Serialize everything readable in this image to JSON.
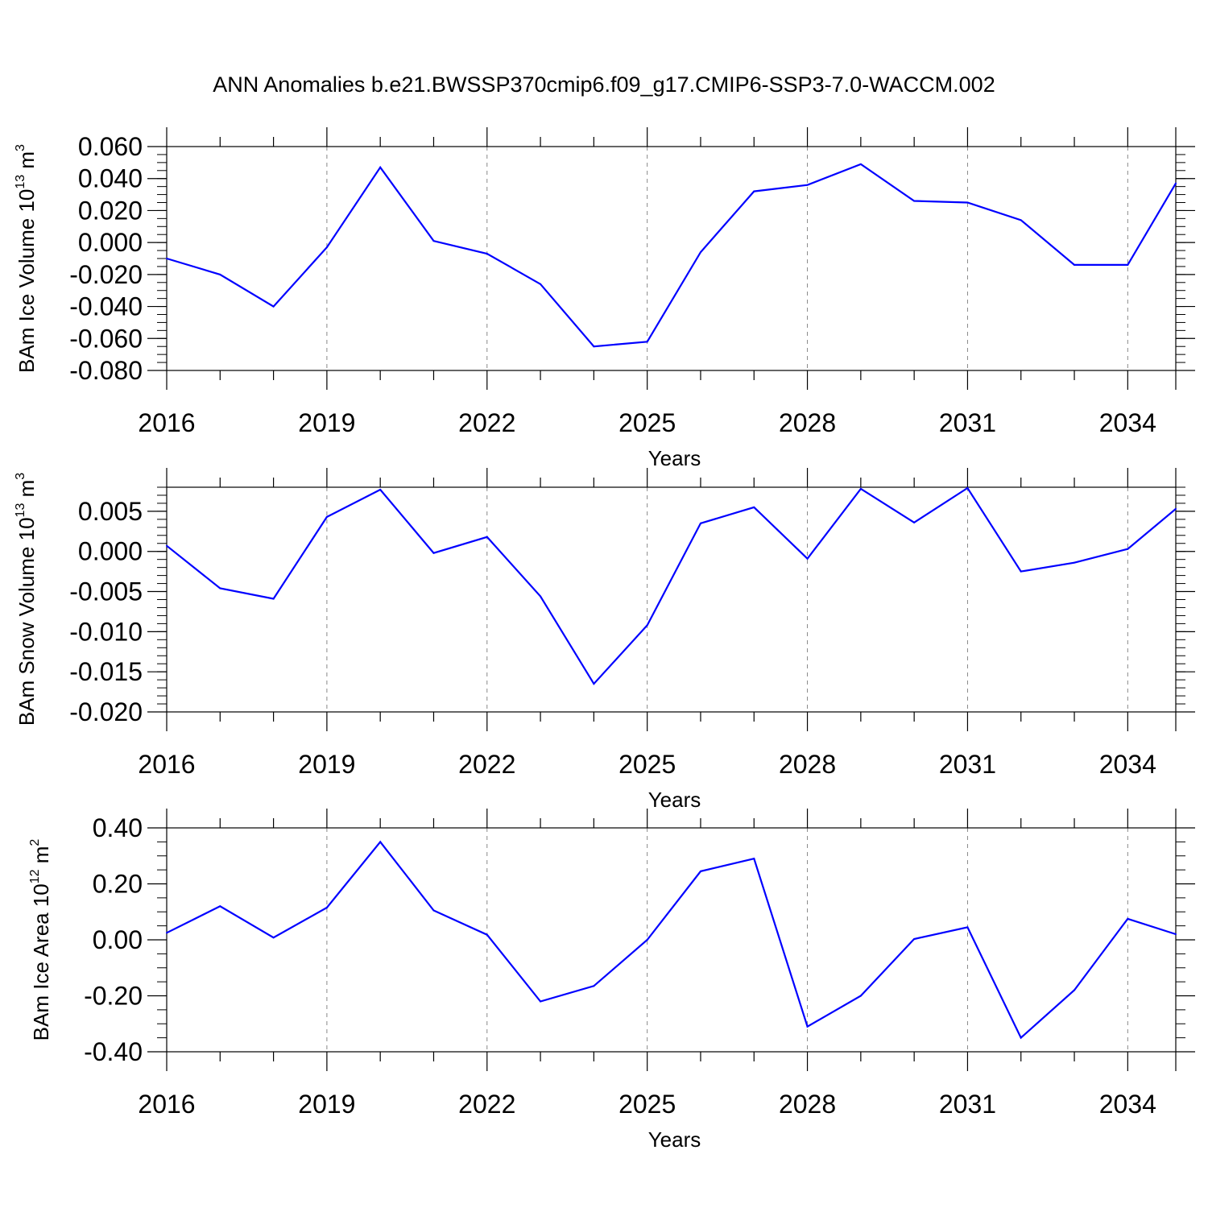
{
  "title": "ANN Anomalies b.e21.BWSSP370cmip6.f09_g17.CMIP6-SSP3-7.0-WACCM.002",
  "colors": {
    "series": "#0000ff",
    "axis": "#000000",
    "grid": "#888888"
  },
  "chart_data": [
    {
      "type": "line",
      "ylabel_prefix": "BAm Ice Volume 10",
      "ylabel_exp": "13",
      "ylabel_unit": " m",
      "ylabel_unit_exp": "3",
      "xlabel": "Years",
      "xlim": [
        2016,
        2034.9
      ],
      "ylim": [
        -0.08,
        0.06
      ],
      "yticks": [
        -0.08,
        -0.06,
        -0.04,
        -0.02,
        0.0,
        0.02,
        0.04,
        0.06
      ],
      "ytick_labels": [
        "-0.080",
        "-0.060",
        "-0.040",
        "-0.020",
        "0.000",
        "0.020",
        "0.040",
        "0.060"
      ],
      "yminor_step": 0.005,
      "xticks": [
        2016,
        2019,
        2022,
        2025,
        2028,
        2031,
        2034
      ],
      "xtick_labels": [
        "2016",
        "2019",
        "2022",
        "2025",
        "2028",
        "2031",
        "2034"
      ],
      "x": [
        2016,
        2017,
        2018,
        2019,
        2020,
        2021,
        2022,
        2023,
        2024,
        2025,
        2026,
        2027,
        2028,
        2029,
        2030,
        2031,
        2032,
        2033,
        2034,
        2034.9
      ],
      "values": [
        -0.01,
        -0.02,
        -0.04,
        -0.003,
        0.047,
        0.001,
        -0.007,
        -0.026,
        -0.065,
        -0.062,
        -0.006,
        0.032,
        0.036,
        0.049,
        0.026,
        0.025,
        0.014,
        -0.014,
        -0.014,
        0.037
      ]
    },
    {
      "type": "line",
      "ylabel_prefix": "BAm Snow Volume 10",
      "ylabel_exp": "13",
      "ylabel_unit": " m",
      "ylabel_unit_exp": "3",
      "xlabel": "Years",
      "xlim": [
        2016,
        2034.9
      ],
      "ylim": [
        -0.02,
        0.008
      ],
      "yticks": [
        -0.02,
        -0.015,
        -0.01,
        -0.005,
        0.0,
        0.005
      ],
      "ytick_labels": [
        "-0.020",
        "-0.015",
        "-0.010",
        "-0.005",
        "0.000",
        "0.005"
      ],
      "yminor_step": 0.001,
      "xticks": [
        2016,
        2019,
        2022,
        2025,
        2028,
        2031,
        2034
      ],
      "xtick_labels": [
        "2016",
        "2019",
        "2022",
        "2025",
        "2028",
        "2031",
        "2034"
      ],
      "x": [
        2016,
        2017,
        2018,
        2019,
        2020,
        2021,
        2022,
        2023,
        2024,
        2025,
        2026,
        2027,
        2028,
        2029,
        2030,
        2031,
        2032,
        2033,
        2034,
        2034.9
      ],
      "values": [
        0.0007,
        -0.0046,
        -0.0059,
        0.0043,
        0.0077,
        -0.0002,
        0.0018,
        -0.0056,
        -0.0165,
        -0.0092,
        0.0035,
        0.0055,
        -0.0009,
        0.0078,
        0.0036,
        0.0079,
        -0.0025,
        -0.0014,
        0.0003,
        0.0053
      ]
    },
    {
      "type": "line",
      "ylabel_prefix": "BAm Ice Area 10",
      "ylabel_exp": "12",
      "ylabel_unit": " m",
      "ylabel_unit_exp": "2",
      "xlabel": "Years",
      "xlim": [
        2016,
        2034.9
      ],
      "ylim": [
        -0.4,
        0.4
      ],
      "yticks": [
        -0.4,
        -0.2,
        0.0,
        0.2,
        0.4
      ],
      "ytick_labels": [
        "-0.40",
        "-0.20",
        "0.00",
        "0.20",
        "0.40"
      ],
      "yminor_step": 0.05,
      "xticks": [
        2016,
        2019,
        2022,
        2025,
        2028,
        2031,
        2034
      ],
      "xtick_labels": [
        "2016",
        "2019",
        "2022",
        "2025",
        "2028",
        "2031",
        "2034"
      ],
      "x": [
        2016,
        2017,
        2018,
        2019,
        2020,
        2021,
        2022,
        2023,
        2024,
        2025,
        2026,
        2027,
        2028,
        2029,
        2030,
        2031,
        2032,
        2033,
        2034,
        2034.9
      ],
      "values": [
        0.025,
        0.12,
        0.008,
        0.115,
        0.35,
        0.105,
        0.018,
        -0.22,
        -0.165,
        0.0,
        0.245,
        0.29,
        -0.31,
        -0.2,
        0.003,
        0.045,
        -0.35,
        -0.18,
        0.075,
        0.02
      ]
    }
  ]
}
